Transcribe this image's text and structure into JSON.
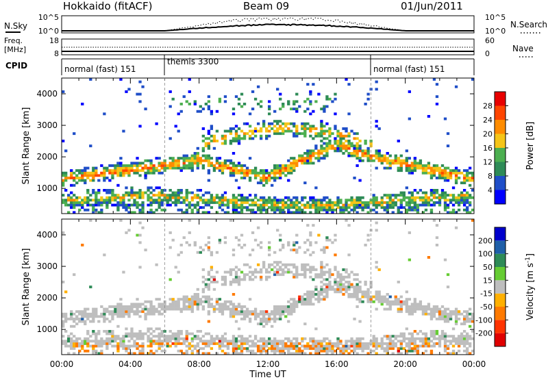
{
  "header": {
    "site": "Hokkaido (fitACF)",
    "beam": "Beam 09",
    "date": "01/Jun/2011"
  },
  "panels": {
    "nsky": {
      "label": "N.Sky",
      "left_ticks": [
        "10^5",
        "10^0"
      ],
      "right_ticks": [
        "10^5",
        "10^0"
      ],
      "right_label": "N.Search"
    },
    "freq": {
      "label_top": "Freq.",
      "label_bottom": "[MHz]",
      "left_ticks": [
        "18",
        "8"
      ],
      "right_ticks": [
        "60",
        "0"
      ],
      "right_label": "Nave"
    },
    "cpid": {
      "label": "CPID",
      "segments": [
        {
          "name": "normal (fast) 151",
          "start_hour": 0
        },
        {
          "name": "themis 3300",
          "start_hour": 6
        },
        {
          "name": "normal (fast) 151",
          "start_hour": 18
        }
      ]
    }
  },
  "chart_data": [
    {
      "type": "heatmap",
      "name": "power-panel",
      "ylabel": "Slant Range [km]",
      "yticks": [
        1000,
        2000,
        3000,
        4000
      ],
      "ylim": [
        200,
        4500
      ],
      "xlim_hours": [
        0,
        24
      ],
      "colorbar": {
        "label": "Power [dB]",
        "ticks": [
          "4",
          "8",
          "12",
          "16",
          "20",
          "24",
          "28"
        ],
        "colors": [
          "#0000ff",
          "#1f4ec8",
          "#2e8b57",
          "#4caf50",
          "#f5c518",
          "#ff8c00",
          "#ff4500",
          "#e80000"
        ]
      }
    },
    {
      "type": "heatmap",
      "name": "velocity-panel",
      "ylabel": "Slant Range [km]",
      "yticks": [
        1000,
        2000,
        3000,
        4000
      ],
      "ylim": [
        200,
        4500
      ],
      "xlim_hours": [
        0,
        24
      ],
      "xlabel": "Time UT",
      "xticks": [
        "00:00",
        "04:00",
        "08:00",
        "12:00",
        "16:00",
        "20:00",
        "00:00"
      ],
      "colorbar": {
        "label": "Velocity [m s-1]",
        "ticks": [
          "200",
          "100",
          "50",
          "15",
          "-15",
          "-50",
          "-100",
          "-200"
        ],
        "colors": [
          "#0000cc",
          "#1f5fa8",
          "#2e8b57",
          "#66cc33",
          "#bebebe",
          "#ffb000",
          "#ff7a00",
          "#ff3300",
          "#e00000"
        ]
      }
    }
  ]
}
